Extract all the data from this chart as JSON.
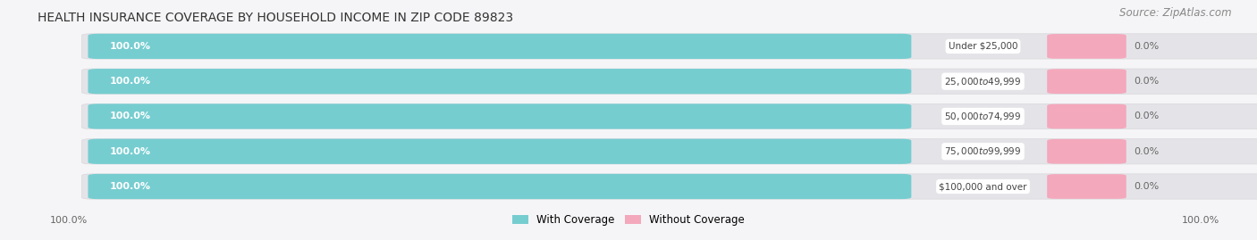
{
  "title": "HEALTH INSURANCE COVERAGE BY HOUSEHOLD INCOME IN ZIP CODE 89823",
  "source": "Source: ZipAtlas.com",
  "categories": [
    "Under $25,000",
    "$25,000 to $49,999",
    "$50,000 to $74,999",
    "$75,000 to $99,999",
    "$100,000 and over"
  ],
  "with_coverage": [
    100.0,
    100.0,
    100.0,
    100.0,
    100.0
  ],
  "without_coverage": [
    0.0,
    0.0,
    0.0,
    0.0,
    0.0
  ],
  "color_with": "#76cdd0",
  "color_without": "#f4a8bc",
  "color_bg_bar": "#e4e4e8",
  "color_bg_outer": "#f0f0f4",
  "label_bottom_left": "100.0%",
  "label_bottom_right": "100.0%",
  "legend_with": "With Coverage",
  "legend_without": "Without Coverage",
  "title_fontsize": 10,
  "source_fontsize": 8.5,
  "background_color": "#f5f5f7"
}
